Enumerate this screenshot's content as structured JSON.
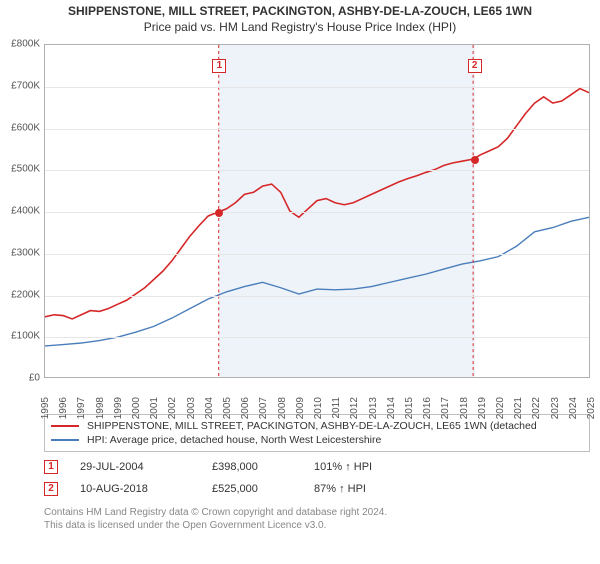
{
  "title_line1": "SHIPPENSTONE, MILL STREET, PACKINGTON, ASHBY-DE-LA-ZOUCH, LE65 1WN",
  "title_line2": "Price paid vs. HM Land Registry's House Price Index (HPI)",
  "chart": {
    "type": "line",
    "x_min": 1995,
    "x_max": 2025,
    "y_min": 0,
    "y_max": 800000,
    "y_ticks": [
      0,
      100000,
      200000,
      300000,
      400000,
      500000,
      600000,
      700000,
      800000
    ],
    "y_tick_labels": [
      "£0",
      "£100K",
      "£200K",
      "£300K",
      "£400K",
      "£500K",
      "£600K",
      "£700K",
      "£800K"
    ],
    "x_ticks": [
      1995,
      1996,
      1997,
      1998,
      1999,
      2000,
      2001,
      2002,
      2003,
      2004,
      2005,
      2006,
      2007,
      2008,
      2009,
      2010,
      2011,
      2012,
      2013,
      2014,
      2015,
      2016,
      2017,
      2018,
      2019,
      2020,
      2021,
      2022,
      2023,
      2024,
      2025
    ],
    "shade_start": 2004.58,
    "shade_end": 2018.61,
    "background_color": "#ffffff",
    "shade_color": "#eef3fa",
    "axis_color": "#b0b0b0",
    "tick_fontsize": 10,
    "series": [
      {
        "name": "property",
        "color": "#d62728",
        "width": 1.6,
        "points": [
          [
            1995,
            145000
          ],
          [
            1995.5,
            150000
          ],
          [
            1996,
            148000
          ],
          [
            1996.5,
            140000
          ],
          [
            1997,
            150000
          ],
          [
            1997.5,
            160000
          ],
          [
            1998,
            158000
          ],
          [
            1998.5,
            165000
          ],
          [
            1999,
            175000
          ],
          [
            1999.5,
            185000
          ],
          [
            2000,
            200000
          ],
          [
            2000.5,
            215000
          ],
          [
            2001,
            235000
          ],
          [
            2001.5,
            255000
          ],
          [
            2002,
            280000
          ],
          [
            2002.5,
            310000
          ],
          [
            2003,
            340000
          ],
          [
            2003.5,
            365000
          ],
          [
            2004,
            388000
          ],
          [
            2004.58,
            398000
          ],
          [
            2005,
            405000
          ],
          [
            2005.5,
            420000
          ],
          [
            2006,
            440000
          ],
          [
            2006.5,
            445000
          ],
          [
            2007,
            460000
          ],
          [
            2007.5,
            465000
          ],
          [
            2008,
            445000
          ],
          [
            2008.5,
            400000
          ],
          [
            2009,
            385000
          ],
          [
            2009.5,
            405000
          ],
          [
            2010,
            425000
          ],
          [
            2010.5,
            430000
          ],
          [
            2011,
            420000
          ],
          [
            2011.5,
            415000
          ],
          [
            2012,
            420000
          ],
          [
            2012.5,
            430000
          ],
          [
            2013,
            440000
          ],
          [
            2013.5,
            450000
          ],
          [
            2014,
            460000
          ],
          [
            2014.5,
            470000
          ],
          [
            2015,
            478000
          ],
          [
            2015.5,
            485000
          ],
          [
            2016,
            493000
          ],
          [
            2016.5,
            500000
          ],
          [
            2017,
            510000
          ],
          [
            2017.5,
            516000
          ],
          [
            2018,
            520000
          ],
          [
            2018.61,
            525000
          ],
          [
            2019,
            535000
          ],
          [
            2019.5,
            545000
          ],
          [
            2020,
            555000
          ],
          [
            2020.5,
            575000
          ],
          [
            2021,
            605000
          ],
          [
            2021.5,
            635000
          ],
          [
            2022,
            660000
          ],
          [
            2022.5,
            675000
          ],
          [
            2023,
            660000
          ],
          [
            2023.5,
            665000
          ],
          [
            2024,
            680000
          ],
          [
            2024.5,
            695000
          ],
          [
            2025,
            685000
          ]
        ]
      },
      {
        "name": "hpi",
        "color": "#4a7ebb",
        "width": 1.4,
        "points": [
          [
            1995,
            75000
          ],
          [
            1996,
            78000
          ],
          [
            1997,
            82000
          ],
          [
            1998,
            88000
          ],
          [
            1999,
            96000
          ],
          [
            2000,
            108000
          ],
          [
            2001,
            122000
          ],
          [
            2002,
            142000
          ],
          [
            2003,
            165000
          ],
          [
            2004,
            188000
          ],
          [
            2005,
            205000
          ],
          [
            2006,
            218000
          ],
          [
            2007,
            228000
          ],
          [
            2008,
            215000
          ],
          [
            2009,
            200000
          ],
          [
            2010,
            212000
          ],
          [
            2011,
            210000
          ],
          [
            2012,
            212000
          ],
          [
            2013,
            218000
          ],
          [
            2014,
            228000
          ],
          [
            2015,
            238000
          ],
          [
            2016,
            248000
          ],
          [
            2017,
            260000
          ],
          [
            2018,
            272000
          ],
          [
            2019,
            280000
          ],
          [
            2020,
            290000
          ],
          [
            2021,
            315000
          ],
          [
            2022,
            350000
          ],
          [
            2023,
            360000
          ],
          [
            2024,
            375000
          ],
          [
            2025,
            385000
          ]
        ]
      }
    ],
    "markers": [
      {
        "n": "1",
        "x": 2004.58,
        "y": 398000,
        "color": "#d62728"
      },
      {
        "n": "2",
        "x": 2018.61,
        "y": 525000,
        "color": "#d62728"
      }
    ]
  },
  "legend": [
    {
      "color": "#d62728",
      "label": "SHIPPENSTONE, MILL STREET, PACKINGTON, ASHBY-DE-LA-ZOUCH, LE65 1WN (detached"
    },
    {
      "color": "#4a7ebb",
      "label": "HPI: Average price, detached house, North West Leicestershire"
    }
  ],
  "events": [
    {
      "n": "1",
      "color": "#d62728",
      "date": "29-JUL-2004",
      "price": "£398,000",
      "pct": "101% ↑ HPI"
    },
    {
      "n": "2",
      "color": "#d62728",
      "date": "10-AUG-2018",
      "price": "£525,000",
      "pct": "87% ↑ HPI"
    }
  ],
  "footer_line1": "Contains HM Land Registry data © Crown copyright and database right 2024.",
  "footer_line2": "This data is licensed under the Open Government Licence v3.0."
}
